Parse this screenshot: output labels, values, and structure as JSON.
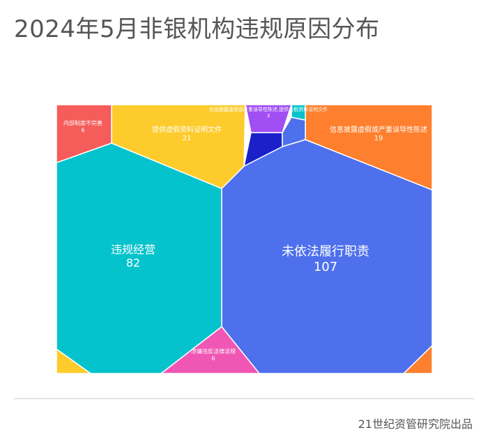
{
  "title": "2024年5月非银机构违规原因分布",
  "source": "21世纪资管研究院出品",
  "chart_data": {
    "type": "voronoi-treemap",
    "title": "2024年5月非银机构违规原因分布",
    "cells": [
      {
        "name": "未依法履行职责",
        "value": 107,
        "color": "#4e70ec"
      },
      {
        "name": "违规经营",
        "value": 82,
        "color": "#05c3cc"
      },
      {
        "name": "提供虚假资料证明文件",
        "value": 21,
        "color": "#fdcb2c"
      },
      {
        "name": "信息披露虚假或严重误导性陈述",
        "value": 19,
        "color": "#fe7f2d"
      },
      {
        "name": "内部制度不完善",
        "value": 6,
        "color": "#f55c5a"
      },
      {
        "name": "涉嫌违反法律法规",
        "value": 6,
        "color": "#f057b4"
      },
      {
        "name": "信息披露虚假或严重误导性陈述,提供虚假资料证明文件",
        "value": 3,
        "color": "#a14ef2"
      },
      {
        "name": "",
        "value": null,
        "color": "#1a21c9"
      },
      {
        "name": "",
        "value": null,
        "color": "#4e70ec"
      },
      {
        "name": "",
        "value": null,
        "color": "#05c3cc"
      },
      {
        "name": "",
        "value": null,
        "color": "#fdcb2c"
      },
      {
        "name": "",
        "value": null,
        "color": "#fe7f2d"
      }
    ]
  }
}
